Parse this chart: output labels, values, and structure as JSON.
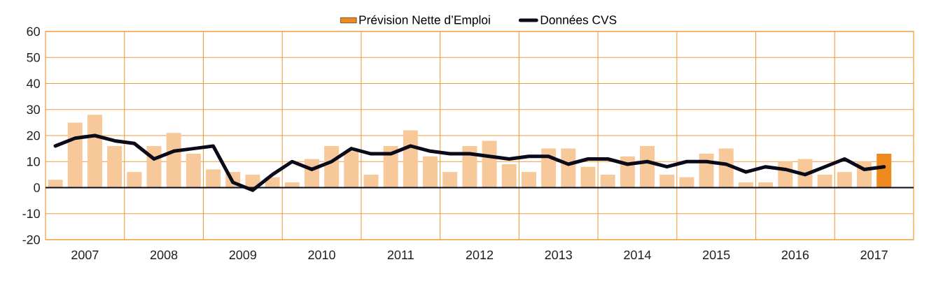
{
  "chart_data": {
    "type": "bar",
    "x": [
      2007.125,
      2007.375,
      2007.625,
      2007.875,
      2008.125,
      2008.375,
      2008.625,
      2008.875,
      2009.125,
      2009.375,
      2009.625,
      2009.875,
      2010.125,
      2010.375,
      2010.625,
      2010.875,
      2011.125,
      2011.375,
      2011.625,
      2011.875,
      2012.125,
      2012.375,
      2012.625,
      2012.875,
      2013.125,
      2013.375,
      2013.625,
      2013.875,
      2014.125,
      2014.375,
      2014.625,
      2014.875,
      2015.125,
      2015.375,
      2015.625,
      2015.875,
      2016.125,
      2016.375,
      2016.625,
      2016.875,
      2017.125,
      2017.375,
      2017.625
    ],
    "series": [
      {
        "type": "bar",
        "color": "#f7c99a",
        "values": [
          3,
          25,
          28,
          16,
          6,
          16,
          21,
          13,
          7,
          6,
          5,
          4,
          2,
          11,
          16,
          14,
          5,
          16,
          22,
          12,
          6,
          16,
          18,
          9,
          6,
          15,
          15,
          8,
          5,
          12,
          16,
          5,
          4,
          13,
          15,
          2,
          2,
          10,
          11,
          5,
          6,
          10,
          null
        ]
      },
      {
        "name": "Prévision Nette d’Emploi",
        "type": "bar",
        "color": "#ee8a1e",
        "values": [
          null,
          null,
          null,
          null,
          null,
          null,
          null,
          null,
          null,
          null,
          null,
          null,
          null,
          null,
          null,
          null,
          null,
          null,
          null,
          null,
          null,
          null,
          null,
          null,
          null,
          null,
          null,
          null,
          null,
          null,
          null,
          null,
          null,
          null,
          null,
          null,
          null,
          null,
          null,
          null,
          null,
          null,
          13
        ]
      },
      {
        "name": "Données CVS",
        "type": "line",
        "color": "#0a0a1a",
        "line_style": "solid",
        "marker": "none",
        "values": [
          16,
          19,
          20,
          18,
          17,
          11,
          14,
          15,
          16,
          2,
          -1,
          5,
          10,
          7,
          10,
          15,
          13,
          13,
          16,
          14,
          13,
          13,
          12,
          11,
          12,
          12,
          9,
          11,
          11,
          9,
          10,
          8,
          10,
          10,
          9,
          6,
          8,
          7,
          5,
          8,
          11,
          7,
          8
        ]
      }
    ],
    "xlim": [
      2007,
      2018
    ],
    "xticks": [
      {
        "value": 2007.5,
        "label": "2007"
      },
      {
        "value": 2008.5,
        "label": "2008"
      },
      {
        "value": 2009.5,
        "label": "2009"
      },
      {
        "value": 2010.5,
        "label": "2010"
      },
      {
        "value": 2011.5,
        "label": "2011"
      },
      {
        "value": 2012.5,
        "label": "2012"
      },
      {
        "value": 2013.5,
        "label": "2013"
      },
      {
        "value": 2014.5,
        "label": "2014"
      },
      {
        "value": 2015.5,
        "label": "2015"
      },
      {
        "value": 2016.5,
        "label": "2016"
      },
      {
        "value": 2017.5,
        "label": "2017"
      },
      {
        "value": 2008,
        "label": null
      },
      {
        "value": 2009,
        "label": null
      },
      {
        "value": 2010,
        "label": null
      },
      {
        "value": 2011,
        "label": null
      },
      {
        "value": 2012,
        "label": null
      },
      {
        "value": 2013,
        "label": null
      },
      {
        "value": 2014,
        "label": null
      },
      {
        "value": 2015,
        "label": null
      },
      {
        "value": 2016,
        "label": null
      },
      {
        "value": 2017,
        "label": null
      }
    ],
    "ylim": [
      -20,
      60
    ],
    "yticks": [
      -20,
      -10,
      0,
      10,
      20,
      30,
      40,
      50,
      60
    ],
    "grid": true,
    "legend": "top",
    "ref_lines": [
      {
        "axis": "y",
        "value": 0,
        "color": "#0a0a1a"
      }
    ]
  }
}
